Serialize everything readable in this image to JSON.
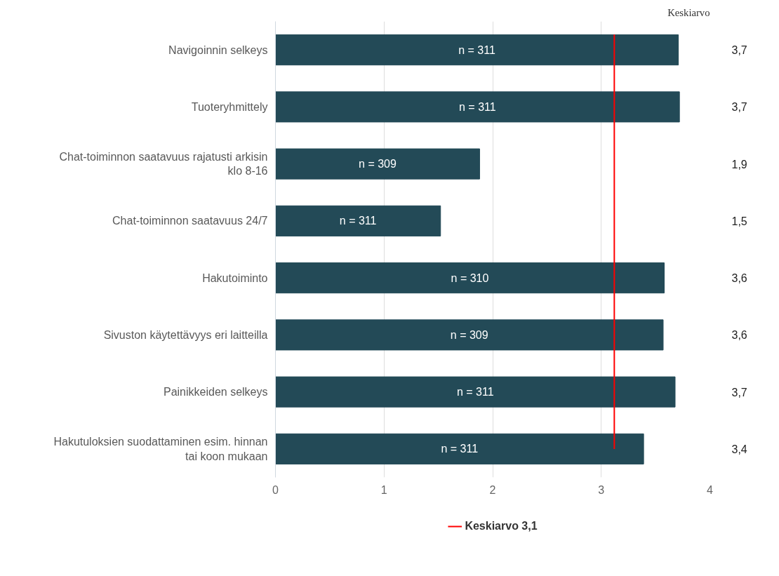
{
  "chart_data": {
    "type": "bar",
    "orientation": "horizontal",
    "categories": [
      "Navigoinnin selkeys",
      "Tuoteryhmittely",
      "Chat-toiminnon saatavuus rajatusti arkisin klo 8-16",
      "Chat-toiminnon saatavuus 24/7",
      "Hakutoiminto",
      "Sivuston käytettävyys eri laitteilla",
      "Painikkeiden selkeys",
      "Hakutuloksien suodattaminen esim. hinnan tai koon mukaan"
    ],
    "values": [
      3.71,
      3.72,
      1.88,
      1.52,
      3.58,
      3.57,
      3.68,
      3.39
    ],
    "value_labels": [
      "3,7",
      "3,7",
      "1,9",
      "1,5",
      "3,6",
      "3,6",
      "3,7",
      "3,4"
    ],
    "color": "#234a57",
    "xlim": [
      0,
      4
    ],
    "xticks": [
      0,
      1,
      2,
      3,
      4
    ],
    "grid": "x",
    "legend": "bottom",
    "ref_lines": [
      {
        "axis": "x",
        "value": 3.12,
        "label": "Keskiarvo 3,1",
        "color": "#ff0000"
      }
    ],
    "annotations": [
      "Keskiarvo",
      "n = 311",
      "n = 311",
      "n = 309",
      "n = 311",
      "n = 310",
      "n = 309",
      "n = 311",
      "n = 311"
    ]
  }
}
